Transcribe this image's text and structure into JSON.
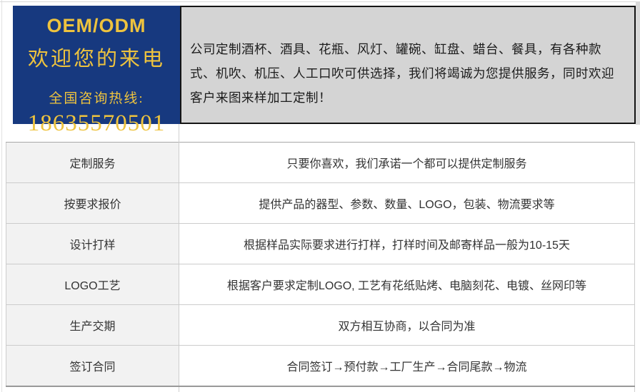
{
  "banner": {
    "brand": {
      "title": "OEM/ODM",
      "subtitle": "欢迎您的来电",
      "hotline_label": "全国咨询热线:",
      "phone": "18635570501"
    },
    "intro": "公司定制酒杯、酒具、花瓶、风灯、罐碗、缸盘、蜡台、餐具，有各种款式、机吹、机压、人工口吹可供选择，我们将竭诚为您提供服务，同时欢迎客户来图来样加工定制！"
  },
  "service_table": {
    "rows": [
      {
        "label": "定制服务",
        "value": "只要你喜欢，我们承诺一个都可以提供定制服务"
      },
      {
        "label": "按要求报价",
        "value": "提供产品的器型、参数、数量、LOGO，包装、物流要求等"
      },
      {
        "label": "设计打样",
        "value": "根据样品实际要求进行打样，打样时间及邮寄样品一般为10-15天"
      },
      {
        "label": "LOGO工艺",
        "value": "根据客户要求定制LOGO, 工艺有花纸贴烤、电脑刻花、电镀、丝网印等"
      },
      {
        "label": "生产交期",
        "value": "双方相互协商，以合同为准"
      },
      {
        "label": "签订合同",
        "value": "合同签订→预付款→工厂生产→合同尾款→物流"
      }
    ]
  },
  "colors": {
    "navy": "#17397f",
    "gold": "#eec33e",
    "panel_gray": "#d4d4d4",
    "label_bg": "#f2f2f2",
    "table_border": "#cccccc"
  }
}
